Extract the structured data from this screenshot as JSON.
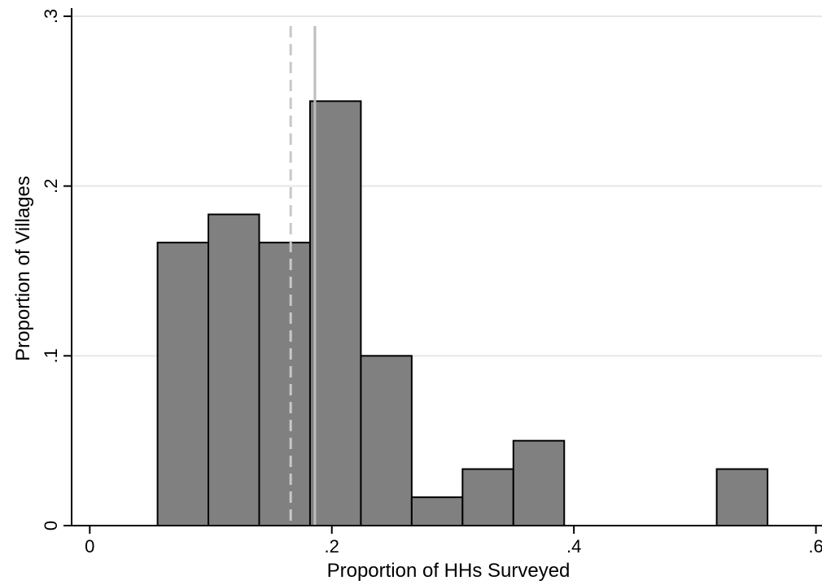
{
  "chart_data": {
    "type": "bar",
    "xlabel": "Proportion of HHs Surveyed",
    "ylabel": "Proportion of Villages",
    "xlim": [
      -0.015,
      0.605
    ],
    "ylim": [
      0,
      0.3
    ],
    "x_ticks": [
      {
        "value": 0,
        "label": "0"
      },
      {
        "value": 0.2,
        "label": ".2"
      },
      {
        "value": 0.4,
        "label": ".4"
      },
      {
        "value": 0.6,
        "label": ".6"
      }
    ],
    "y_ticks": [
      {
        "value": 0,
        "label": "0"
      },
      {
        "value": 0.1,
        "label": ".1"
      },
      {
        "value": 0.2,
        "label": ".2"
      },
      {
        "value": 0.3,
        "label": ".3"
      }
    ],
    "grid": {
      "horizontal": true,
      "vertical": false
    },
    "bins": [
      {
        "start": 0.056,
        "end": 0.098,
        "value": 0.1667
      },
      {
        "start": 0.098,
        "end": 0.14,
        "value": 0.1833
      },
      {
        "start": 0.14,
        "end": 0.182,
        "value": 0.1667
      },
      {
        "start": 0.182,
        "end": 0.224,
        "value": 0.25
      },
      {
        "start": 0.224,
        "end": 0.266,
        "value": 0.1
      },
      {
        "start": 0.266,
        "end": 0.308,
        "value": 0.0167
      },
      {
        "start": 0.308,
        "end": 0.35,
        "value": 0.0333
      },
      {
        "start": 0.35,
        "end": 0.392,
        "value": 0.05
      },
      {
        "start": 0.518,
        "end": 0.56,
        "value": 0.0333
      }
    ],
    "reference_lines": [
      {
        "x": 0.166,
        "style": "dashed",
        "color": "#c8c8c8"
      },
      {
        "x": 0.186,
        "style": "solid",
        "color": "#bdbdbd"
      }
    ],
    "colors": {
      "bar_fill": "#808080",
      "bar_stroke": "#000000",
      "grid": "#e6e6e6"
    }
  }
}
